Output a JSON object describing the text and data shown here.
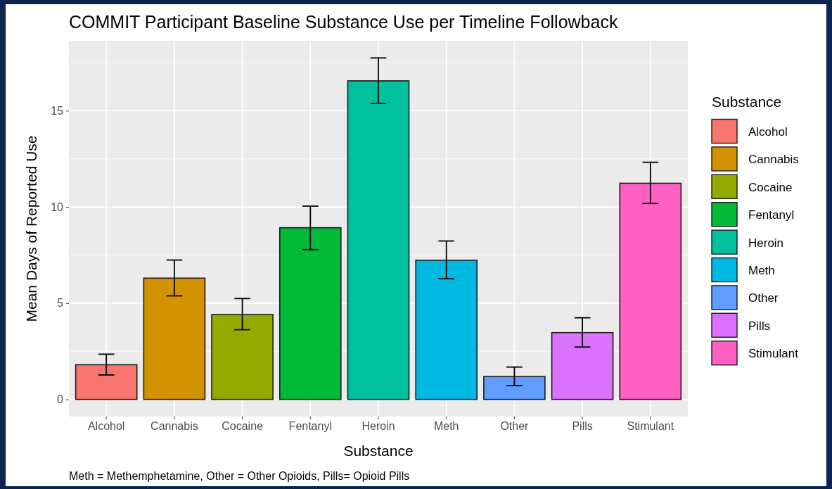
{
  "chart_data": {
    "type": "bar",
    "title": "COMMIT Participant Baseline Substance Use per Timeline Followback",
    "xlabel": "Substance",
    "ylabel": "Mean Days of Reported Use",
    "legend_title": "Substance",
    "categories": [
      "Alcohol",
      "Cannabis",
      "Cocaine",
      "Fentanyl",
      "Heroin",
      "Meth",
      "Other",
      "Pills",
      "Stimulant"
    ],
    "series": [
      {
        "name": "Alcohol",
        "color": "#f8766d",
        "values": [
          1.8,
          null,
          null,
          null,
          null,
          null,
          null,
          null,
          null
        ],
        "errors": [
          [
            1.27,
            2.35
          ],
          null,
          null,
          null,
          null,
          null,
          null,
          null,
          null
        ]
      },
      {
        "name": "Cannabis",
        "color": "#d39200",
        "values": [
          null,
          6.3,
          null,
          null,
          null,
          null,
          null,
          null,
          null
        ],
        "errors": [
          null,
          [
            5.38,
            7.24
          ],
          null,
          null,
          null,
          null,
          null,
          null,
          null
        ]
      },
      {
        "name": "Cocaine",
        "color": "#93aa00",
        "values": [
          null,
          null,
          4.41,
          null,
          null,
          null,
          null,
          null,
          null
        ],
        "errors": [
          null,
          null,
          [
            3.62,
            5.24
          ],
          null,
          null,
          null,
          null,
          null,
          null
        ]
      },
      {
        "name": "Fentanyl",
        "color": "#00ba38",
        "values": [
          null,
          null,
          null,
          8.92,
          null,
          null,
          null,
          null,
          null
        ],
        "errors": [
          null,
          null,
          null,
          [
            7.78,
            10.04
          ],
          null,
          null,
          null,
          null,
          null
        ]
      },
      {
        "name": "Heroin",
        "color": "#00c19f",
        "values": [
          null,
          null,
          null,
          null,
          16.55,
          null,
          null,
          null,
          null
        ],
        "errors": [
          null,
          null,
          null,
          null,
          [
            15.38,
            17.74
          ],
          null,
          null,
          null,
          null
        ]
      },
      {
        "name": "Meth",
        "color": "#00b9e3",
        "values": [
          null,
          null,
          null,
          null,
          null,
          7.23,
          null,
          null,
          null
        ],
        "errors": [
          null,
          null,
          null,
          null,
          null,
          [
            6.27,
            8.23
          ],
          null,
          null,
          null
        ]
      },
      {
        "name": "Other",
        "color": "#619cff",
        "values": [
          null,
          null,
          null,
          null,
          null,
          null,
          1.19,
          null,
          null
        ],
        "errors": [
          null,
          null,
          null,
          null,
          null,
          null,
          [
            0.72,
            1.68
          ],
          null,
          null
        ]
      },
      {
        "name": "Pills",
        "color": "#db72fb",
        "values": [
          null,
          null,
          null,
          null,
          null,
          null,
          null,
          3.47,
          null
        ],
        "errors": [
          null,
          null,
          null,
          null,
          null,
          null,
          null,
          [
            2.72,
            4.24
          ],
          null
        ]
      },
      {
        "name": "Stimulant",
        "color": "#ff61c3",
        "values": [
          null,
          null,
          null,
          null,
          null,
          null,
          null,
          null,
          11.23
        ],
        "errors": [
          null,
          null,
          null,
          null,
          null,
          null,
          null,
          null,
          [
            10.18,
            12.32
          ]
        ]
      }
    ],
    "ylim": [
      -0.89,
      18.63
    ],
    "yticks": [
      0,
      5,
      10,
      15
    ],
    "grid": true,
    "legend": "right",
    "annotations": [
      "Meth = Methemphetamine, Other = Other Opioids, Pills= Opioid Pills"
    ]
  }
}
